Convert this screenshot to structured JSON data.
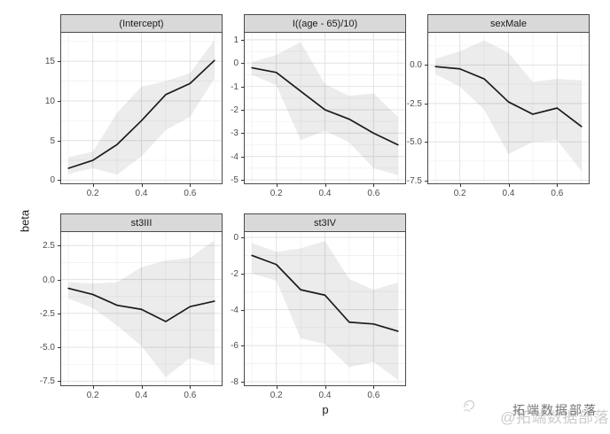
{
  "figure": {
    "background": "#ffffff",
    "watermark": {
      "dark_text": "拓端数据部落",
      "light_text": "@拓端数据部落",
      "logo_icon": "scribble-logo-icon",
      "dark_color": "#777777",
      "light_color": "#cccccc"
    },
    "colors": {
      "strip_fill": "#d9d9d9",
      "panel_border": "#4a4a4a",
      "grid_major": "#e4e4e4",
      "grid_minor": "#f1f1f1",
      "line": "#1b1b1b",
      "ribbon": "rgba(0,0,0,0.075)",
      "tick_text": "#4d4d4d",
      "axis_title_text": "#1a1a1a"
    }
  },
  "chart_data": {
    "type": "line",
    "description": "Faceted coefficient (beta) estimates with confidence ribbons versus p, ggplot-style, 5 facets with free y scales",
    "xlabel": "p",
    "ylabel": "beta",
    "x": [
      0.1,
      0.2,
      0.3,
      0.4,
      0.5,
      0.6,
      0.7
    ],
    "xlim": [
      0.07,
      0.73
    ],
    "x_ticks": [
      0.2,
      0.4,
      0.6
    ],
    "x_tick_labels": [
      "0.2",
      "0.4",
      "0.6"
    ],
    "x_minor_ticks": [
      0.1,
      0.3,
      0.5,
      0.7
    ],
    "grid": true,
    "legend": "none",
    "facets": [
      {
        "label": "(Intercept)",
        "row": 0,
        "col": 0,
        "ylim": [
          -0.4,
          18.6
        ],
        "y_ticks": [
          15,
          10,
          5,
          0
        ],
        "y_tick_labels": [
          "15",
          "10",
          "5",
          "0"
        ],
        "line": [
          1.5,
          2.5,
          4.5,
          7.5,
          10.8,
          12.2,
          15.1
        ],
        "ribbon_upper": [
          2.9,
          3.6,
          8.5,
          11.8,
          12.5,
          13.5,
          17.7
        ],
        "ribbon_lower": [
          0.8,
          1.5,
          0.7,
          3.0,
          6.3,
          8.0,
          12.8
        ]
      },
      {
        "label": "I((age - 65)/10)",
        "row": 0,
        "col": 1,
        "ylim": [
          -5.15,
          1.3
        ],
        "y_ticks": [
          1,
          0,
          -1,
          -2,
          -3,
          -4,
          -5
        ],
        "y_tick_labels": [
          "1",
          "0",
          "-1",
          "-2",
          "-3",
          "-4",
          "-5"
        ],
        "line": [
          -0.2,
          -0.4,
          -1.2,
          -2.0,
          -2.4,
          -3.0,
          -3.5
        ],
        "ribbon_upper": [
          0.05,
          0.35,
          0.9,
          -0.9,
          -1.4,
          -1.3,
          -2.3
        ],
        "ribbon_lower": [
          -0.5,
          -0.95,
          -3.3,
          -2.9,
          -3.4,
          -4.5,
          -4.8
        ]
      },
      {
        "label": "sexMale",
        "row": 0,
        "col": 2,
        "ylim": [
          -7.7,
          2.1
        ],
        "y_ticks": [
          0,
          -2.5,
          -5,
          -7.5
        ],
        "y_tick_labels": [
          "0.0",
          "-2.5",
          "-5.0",
          "-7.5"
        ],
        "line": [
          -0.1,
          -0.25,
          -0.9,
          -2.4,
          -3.2,
          -2.8,
          -4.0
        ],
        "ribbon_upper": [
          0.4,
          0.9,
          1.6,
          0.8,
          -1.1,
          -0.9,
          -1.0
        ],
        "ribbon_lower": [
          -0.6,
          -1.4,
          -2.9,
          -5.8,
          -5.0,
          -4.9,
          -6.9
        ]
      },
      {
        "label": "st3III",
        "row": 1,
        "col": 0,
        "ylim": [
          -7.8,
          3.5
        ],
        "y_ticks": [
          2.5,
          0,
          -2.5,
          -5,
          -7.5
        ],
        "y_tick_labels": [
          "2.5",
          "0.0",
          "-2.5",
          "-5.0",
          "-7.5"
        ],
        "line": [
          -0.65,
          -1.1,
          -1.9,
          -2.2,
          -3.1,
          -2.0,
          -1.6
        ],
        "ribbon_upper": [
          -0.2,
          -0.3,
          -0.2,
          0.9,
          1.4,
          1.6,
          2.9
        ],
        "ribbon_lower": [
          -1.4,
          -2.1,
          -3.4,
          -4.9,
          -7.2,
          -5.8,
          -6.3
        ]
      },
      {
        "label": "st3IV",
        "row": 1,
        "col": 1,
        "ylim": [
          -8.2,
          0.3
        ],
        "y_ticks": [
          0,
          -2,
          -4,
          -6,
          -8
        ],
        "y_tick_labels": [
          "0",
          "-2",
          "-4",
          "-6",
          "-8"
        ],
        "line": [
          -1.0,
          -1.5,
          -2.9,
          -3.2,
          -4.7,
          -4.8,
          -5.2
        ],
        "ribbon_upper": [
          -0.3,
          -0.8,
          -0.6,
          -0.2,
          -2.3,
          -2.9,
          -2.5
        ],
        "ribbon_lower": [
          -2.0,
          -2.4,
          -5.6,
          -5.9,
          -7.2,
          -6.9,
          -7.9
        ]
      }
    ]
  }
}
